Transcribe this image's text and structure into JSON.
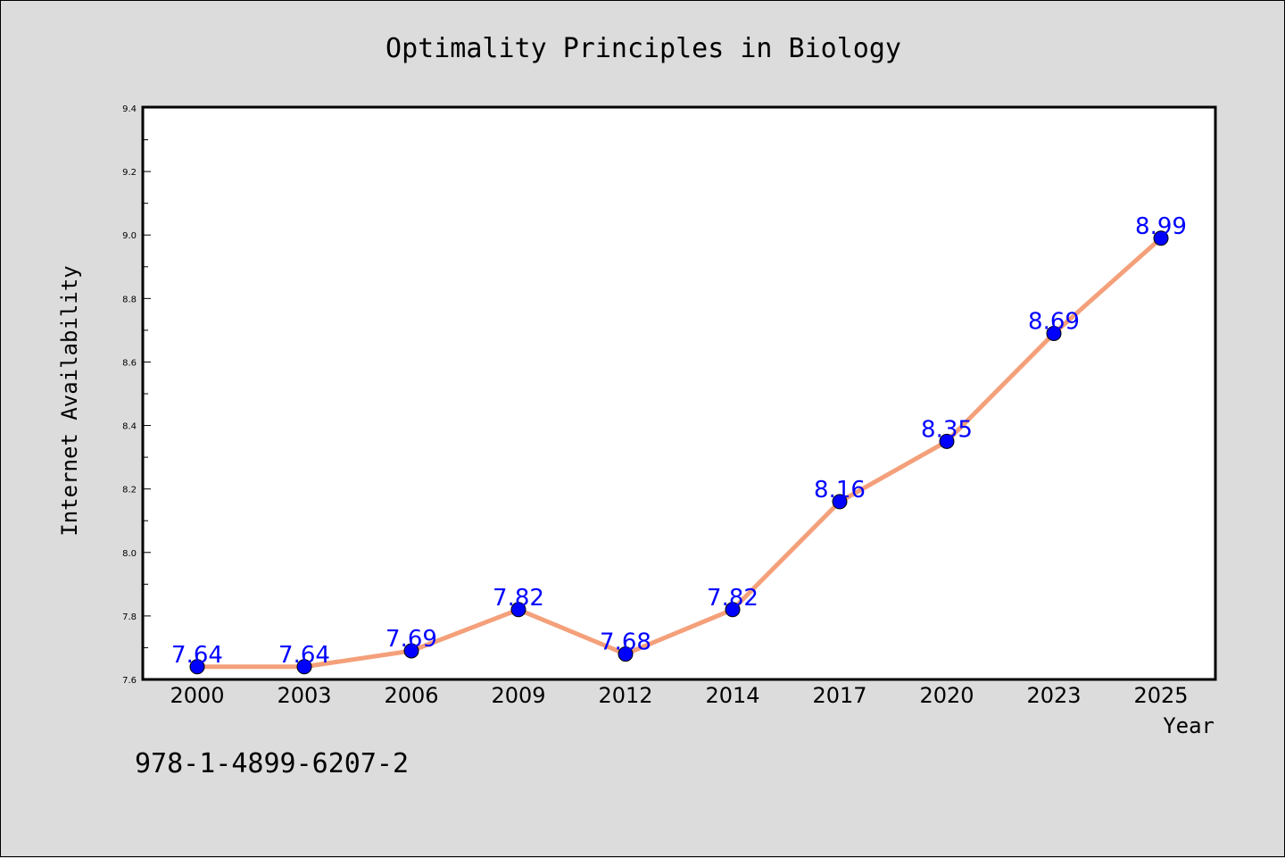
{
  "chart_data": {
    "type": "line",
    "title": "Optimality Principles in Biology",
    "xlabel": "Year",
    "ylabel": "Internet Availability",
    "categories": [
      "2000",
      "2003",
      "2006",
      "2009",
      "2012",
      "2014",
      "2017",
      "2020",
      "2023",
      "2025"
    ],
    "series": [
      {
        "values": [
          7.64,
          7.64,
          7.69,
          7.82,
          7.68,
          7.82,
          8.16,
          8.35,
          8.69,
          8.99
        ]
      }
    ],
    "data_labels": [
      "7.64",
      "7.64",
      "7.69",
      "7.82",
      "7.68",
      "7.82",
      "8.16",
      "8.35",
      "8.69",
      "8.99"
    ],
    "ylim": [
      7.6,
      9.4
    ],
    "yticks": [
      "7.6",
      "7.8",
      "8.0",
      "8.2",
      "8.4",
      "8.6",
      "8.8",
      "9.0",
      "9.2",
      "9.4"
    ],
    "grid": false,
    "legend": "none",
    "colors": {
      "line": "#f4a07a",
      "marker": "#0000ff",
      "data_label": "#0000ff",
      "background": "#dcdcdc",
      "plot_area": "#ffffff"
    }
  },
  "footnote": "978-1-4899-6207-2"
}
